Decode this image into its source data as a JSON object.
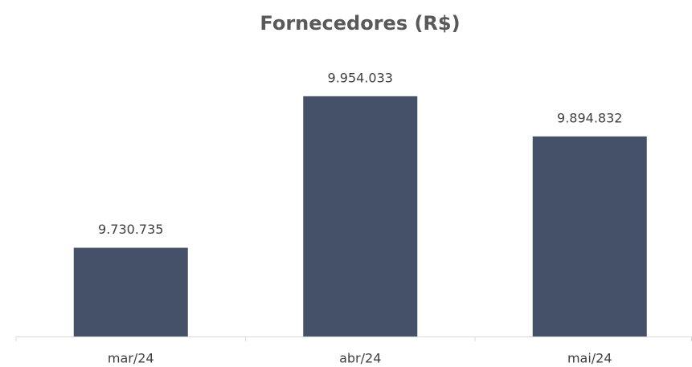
{
  "chart_data": {
    "type": "bar",
    "title": "Fornecedores (R$)",
    "categories": [
      "mar/24",
      "abr/24",
      "mai/24"
    ],
    "values": [
      9730735,
      9954033,
      9894832
    ],
    "value_labels": [
      "9.730.735",
      "9.954.033",
      "9.894.832"
    ],
    "color": "#445169",
    "ylim": [
      9600000,
      10000000
    ]
  }
}
